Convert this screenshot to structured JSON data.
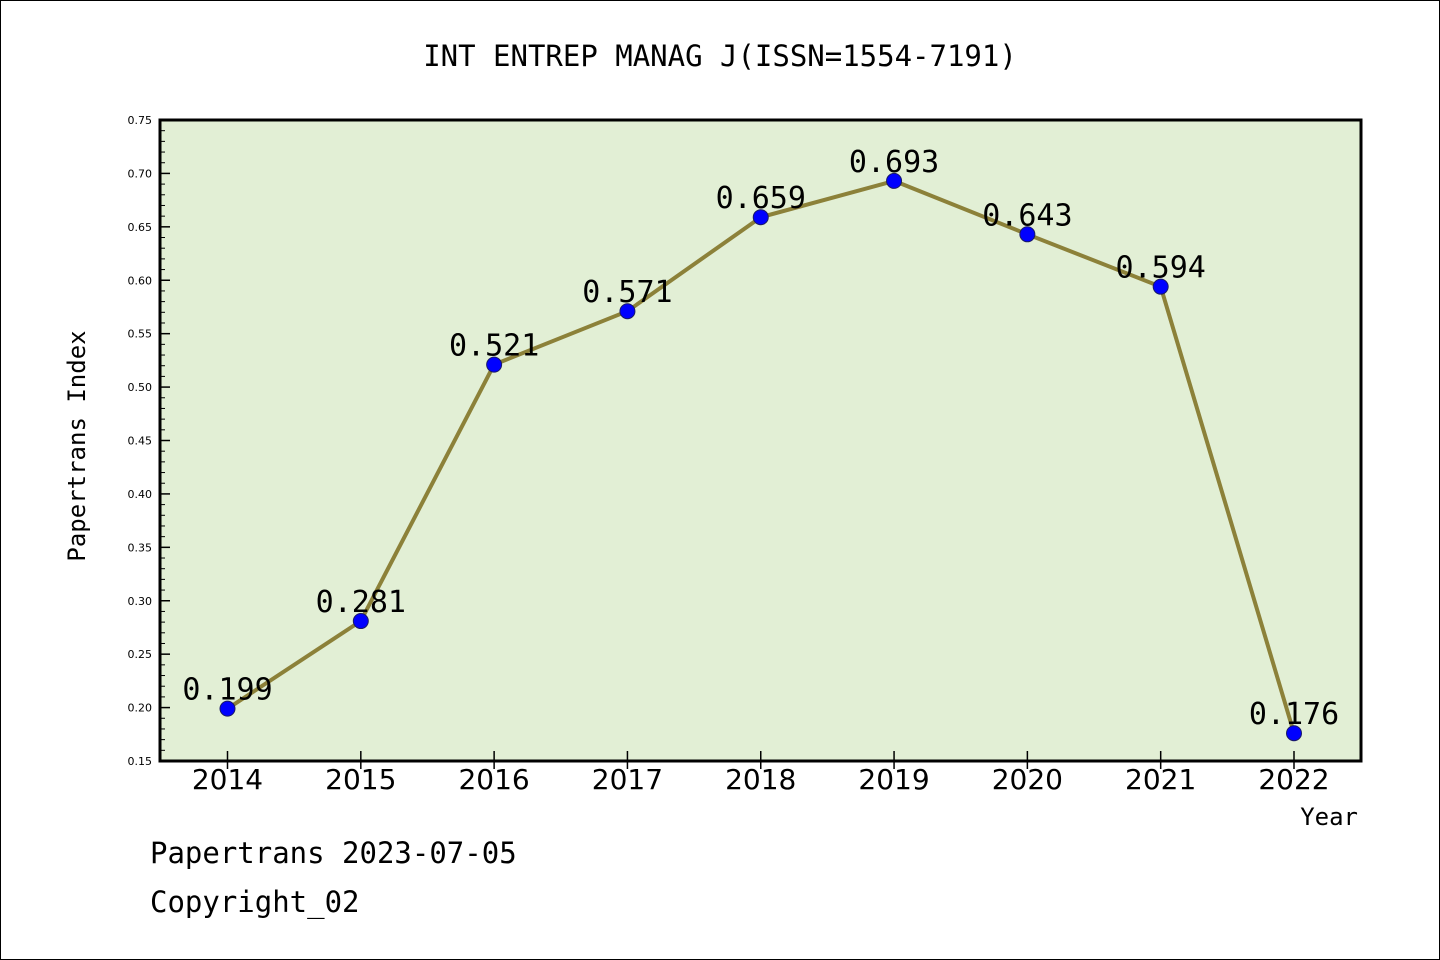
{
  "chart_data": {
    "type": "line",
    "title": "INT ENTREP MANAG J(ISSN=1554-7191)",
    "xlabel": "Year",
    "ylabel": "Papertrans Index",
    "categories": [
      "2014",
      "2015",
      "2016",
      "2017",
      "2018",
      "2019",
      "2020",
      "2021",
      "2022"
    ],
    "values": [
      0.199,
      0.281,
      0.521,
      0.571,
      0.659,
      0.693,
      0.643,
      0.594,
      0.176
    ],
    "data_labels": [
      "0.199",
      "0.281",
      "0.521",
      "0.571",
      "0.659",
      "0.693",
      "0.643",
      "0.594",
      "0.176"
    ],
    "ylim": [
      0.15,
      0.75
    ],
    "yticks": [
      "0.15",
      "0.20",
      "0.25",
      "0.30",
      "0.35",
      "0.40",
      "0.45",
      "0.50",
      "0.55",
      "0.60",
      "0.65",
      "0.70",
      "0.75"
    ],
    "grid": false,
    "colors": {
      "plot_background": "#e2efd5",
      "line": "#8c8139",
      "marker": "#0000ff"
    }
  },
  "footer": {
    "line1": "Papertrans 2023-07-05",
    "line2": "Copyright_02"
  }
}
